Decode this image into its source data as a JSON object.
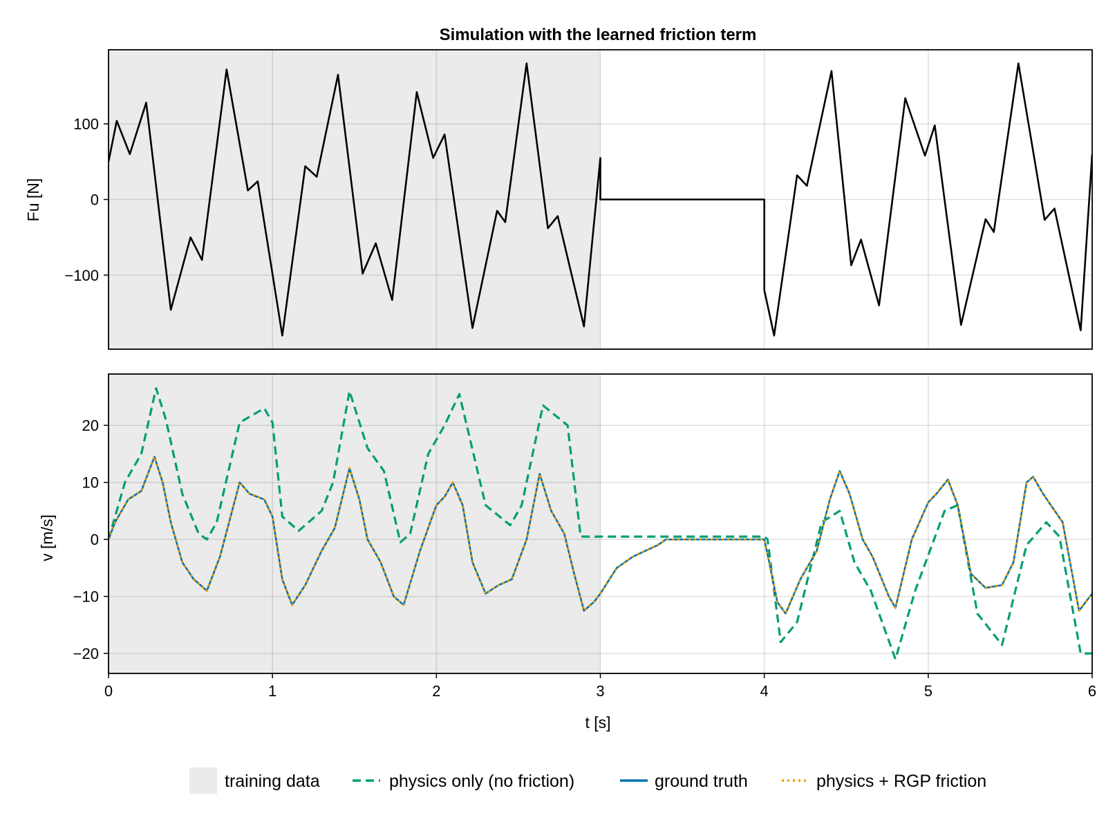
{
  "chart_data": [
    {
      "type": "line",
      "title": "Simulation with the learned friction term",
      "ylabel": "Fu [N]",
      "xlabel": "",
      "xlim": [
        0,
        6
      ],
      "ylim": [
        -198,
        198
      ],
      "yticks": [
        -100,
        0,
        100
      ],
      "ytick_labels": [
        "−100",
        "0",
        "100"
      ],
      "xticks": [
        0,
        1,
        2,
        3,
        4,
        5,
        6
      ],
      "show_xtick_labels": false,
      "grid": true,
      "shaded_region": {
        "x": [
          0,
          3
        ],
        "color": "#ebebeb"
      },
      "series": [
        {
          "color": "#000000",
          "style": "solid",
          "x": [
            0,
            0.05,
            0.13,
            0.23,
            0.38,
            0.5,
            0.57,
            0.72,
            0.85,
            0.91,
            1.06,
            1.2,
            1.27,
            1.4,
            1.55,
            1.63,
            1.73,
            1.88,
            1.98,
            2.05,
            2.22,
            2.37,
            2.42,
            2.55,
            2.68,
            2.74,
            2.9,
            3.0,
            3.0,
            4.0,
            4.0,
            4.06,
            4.2,
            4.26,
            4.41,
            4.53,
            4.59,
            4.7,
            4.86,
            4.98,
            5.04,
            5.2,
            5.35,
            5.4,
            5.55,
            5.71,
            5.77,
            5.93,
            6.0
          ],
          "y": [
            50,
            104,
            60,
            128,
            -146,
            -50,
            -80,
            172,
            12,
            24,
            -180,
            44,
            30,
            165,
            -98,
            -58,
            -133,
            142,
            55,
            86,
            -170,
            -15,
            -30,
            180,
            -38,
            -22,
            -168,
            55,
            0,
            0,
            -120,
            -180,
            32,
            18,
            170,
            -87,
            -53,
            -140,
            134,
            58,
            98,
            -166,
            -26,
            -43,
            180,
            -27,
            -12,
            -173,
            60
          ]
        }
      ]
    },
    {
      "type": "line",
      "title": "",
      "ylabel": "v [m/s]",
      "xlabel": "t [s]",
      "xlim": [
        0,
        6
      ],
      "ylim": [
        -23.5,
        29
      ],
      "yticks": [
        -20,
        -10,
        0,
        10,
        20
      ],
      "ytick_labels": [
        "−20",
        "−10",
        "0",
        "10",
        "20"
      ],
      "xticks": [
        0,
        1,
        2,
        3,
        4,
        5,
        6
      ],
      "xtick_labels": [
        "0",
        "1",
        "2",
        "3",
        "4",
        "5",
        "6"
      ],
      "grid": true,
      "shaded_region": {
        "x": [
          0,
          3
        ],
        "color": "#ebebeb"
      },
      "series": [
        {
          "name": "physics only (no friction)",
          "color": "#009e73",
          "style": "dashed",
          "x": [
            0,
            0.1,
            0.2,
            0.29,
            0.35,
            0.45,
            0.55,
            0.6,
            0.66,
            0.8,
            0.95,
            1.0,
            1.06,
            1.16,
            1.3,
            1.37,
            1.47,
            1.58,
            1.68,
            1.78,
            1.84,
            1.95,
            2.05,
            2.14,
            2.3,
            2.45,
            2.52,
            2.65,
            2.8,
            2.88,
            3.0,
            4.0,
            4.02,
            4.1,
            4.2,
            4.35,
            4.46,
            4.55,
            4.65,
            4.8,
            4.92,
            5.1,
            5.18,
            5.3,
            5.45,
            5.6,
            5.72,
            5.8,
            5.93,
            6.0
          ],
          "y": [
            0,
            10,
            15,
            26.5,
            21,
            8,
            1,
            0,
            3,
            20.5,
            23,
            20.5,
            4,
            1.5,
            5,
            10,
            26,
            16,
            12,
            -0.5,
            1,
            15,
            20,
            25.5,
            6,
            2.5,
            6,
            23.5,
            20,
            0.5,
            0.5,
            0.5,
            0,
            -18,
            -14.5,
            3,
            5,
            -4,
            -9,
            -21,
            -9,
            5,
            6,
            -13,
            -18.5,
            -1,
            3,
            0.5,
            -20,
            -20
          ]
        },
        {
          "name": "ground truth",
          "color": "#0072b2",
          "style": "solid",
          "x": [
            0,
            0.04,
            0.12,
            0.2,
            0.28,
            0.33,
            0.38,
            0.45,
            0.52,
            0.6,
            0.68,
            0.8,
            0.86,
            0.95,
            1.0,
            1.06,
            1.12,
            1.2,
            1.3,
            1.38,
            1.47,
            1.53,
            1.58,
            1.66,
            1.74,
            1.8,
            1.9,
            2.0,
            2.05,
            2.1,
            2.16,
            2.22,
            2.3,
            2.38,
            2.46,
            2.55,
            2.63,
            2.7,
            2.78,
            2.84,
            2.9,
            2.96,
            3.0,
            3.1,
            3.2,
            3.35,
            3.4,
            4.0,
            4.03,
            4.08,
            4.13,
            4.22,
            4.32,
            4.4,
            4.46,
            4.52,
            4.6,
            4.66,
            4.76,
            4.8,
            4.9,
            5.0,
            5.05,
            5.12,
            5.18,
            5.26,
            5.35,
            5.45,
            5.52,
            5.6,
            5.64,
            5.7,
            5.82,
            5.92,
            6.0
          ],
          "y": [
            0,
            3,
            7,
            8.5,
            14.5,
            10,
            3,
            -4,
            -7,
            -9,
            -3,
            10,
            8,
            7,
            4,
            -7,
            -11.5,
            -8,
            -2,
            2,
            12.5,
            7,
            0,
            -4,
            -10,
            -11.5,
            -2,
            6,
            7.5,
            10,
            6,
            -4,
            -9.5,
            -8,
            -7,
            0,
            11.5,
            5,
            1,
            -6,
            -12.5,
            -11,
            -9.5,
            -5,
            -3,
            -1,
            0,
            0,
            -4,
            -11,
            -13,
            -7,
            -2,
            7,
            12,
            8,
            0,
            -3,
            -10,
            -12,
            0,
            6.5,
            8,
            10.5,
            6,
            -6,
            -8.5,
            -8,
            -4,
            10,
            11,
            8,
            3,
            -12.5,
            -9.5
          ]
        },
        {
          "name": "physics + RGP friction",
          "color": "#e69f00",
          "style": "dotted",
          "x": [
            0,
            0.04,
            0.12,
            0.2,
            0.28,
            0.33,
            0.38,
            0.45,
            0.52,
            0.6,
            0.68,
            0.8,
            0.86,
            0.95,
            1.0,
            1.06,
            1.12,
            1.2,
            1.3,
            1.38,
            1.47,
            1.53,
            1.58,
            1.66,
            1.74,
            1.8,
            1.9,
            2.0,
            2.05,
            2.1,
            2.16,
            2.22,
            2.3,
            2.38,
            2.46,
            2.55,
            2.63,
            2.7,
            2.78,
            2.84,
            2.9,
            2.96,
            3.0,
            3.1,
            3.2,
            3.35,
            3.4,
            4.0,
            4.03,
            4.08,
            4.13,
            4.22,
            4.32,
            4.4,
            4.46,
            4.52,
            4.6,
            4.66,
            4.76,
            4.8,
            4.9,
            5.0,
            5.05,
            5.12,
            5.18,
            5.26,
            5.35,
            5.45,
            5.52,
            5.6,
            5.64,
            5.7,
            5.82,
            5.92,
            6.0
          ],
          "y": [
            0,
            3,
            7,
            8.5,
            14.5,
            10,
            3,
            -4,
            -7,
            -9,
            -3,
            10,
            8,
            7,
            4,
            -7,
            -11.5,
            -8,
            -2,
            2,
            12.5,
            7,
            0,
            -4,
            -10,
            -11.5,
            -2,
            6,
            7.5,
            10,
            6,
            -4,
            -9.5,
            -8,
            -7,
            0,
            11.5,
            5,
            1,
            -6,
            -12.5,
            -11,
            -9.5,
            -5,
            -3,
            -1,
            0,
            0,
            -4,
            -11,
            -13,
            -7,
            -2,
            7,
            12,
            8,
            0,
            -3,
            -10,
            -12,
            0,
            6.5,
            8,
            10.5,
            6,
            -6,
            -8.5,
            -8,
            -4,
            10,
            11,
            8,
            3,
            -12.5,
            -9.5
          ]
        }
      ]
    }
  ],
  "legend": {
    "placement": "bottom",
    "items": [
      {
        "label": "training data",
        "kind": "patch",
        "color": "#ebebeb"
      },
      {
        "label": "physics only (no friction)",
        "kind": "dashed",
        "color": "#009e73"
      },
      {
        "label": "ground truth",
        "kind": "solid",
        "color": "#0072b2"
      },
      {
        "label": "physics + RGP friction",
        "kind": "dotted",
        "color": "#e69f00"
      }
    ]
  }
}
